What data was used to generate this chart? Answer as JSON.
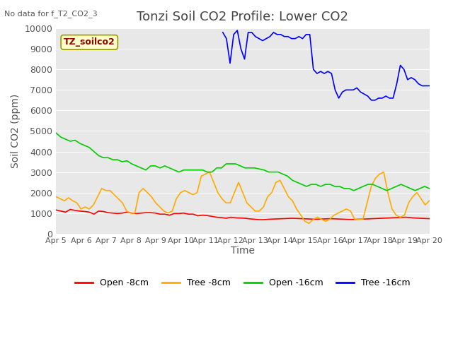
{
  "title": "Tonzi Soil CO2 Profile: Lower CO2",
  "subtitle": "No data for f_T2_CO2_3",
  "xlabel": "Time",
  "ylabel": "Soil CO2 (ppm)",
  "legend_label": "TZ_soilco2",
  "legend_entries": [
    "Open -8cm",
    "Tree -8cm",
    "Open -16cm",
    "Tree -16cm"
  ],
  "legend_colors": [
    "#ff0000",
    "#ffaa00",
    "#00cc00",
    "#0000ff"
  ],
  "bg_color": "#e8e8e8",
  "plot_bg_color": "#e8e8e8",
  "ylim": [
    0,
    10000
  ],
  "yticks": [
    0,
    1000,
    2000,
    3000,
    4000,
    5000,
    6000,
    7000,
    8000,
    9000,
    10000
  ],
  "xtick_labels": [
    "Apr 5",
    "Apr 6",
    "Apr 7",
    "Apr 8",
    "Apr 9",
    "Apr 10",
    "Apr 11",
    "Apr 12",
    "Apr 13",
    "Apr 14",
    "Apr 15",
    "Apr 16",
    "Apr 17",
    "Apr 18",
    "Apr 19",
    "Apr 20"
  ],
  "title_fontsize": 13,
  "axis_fontsize": 10,
  "tick_fontsize": 9,
  "line_width": 1.2,
  "open_8cm": [
    1150,
    1100,
    1050,
    1180,
    1130,
    1100,
    1080,
    1050,
    950,
    1100,
    1080,
    1020,
    1000,
    980,
    1000,
    1050,
    1000,
    980,
    1000,
    1020,
    1020,
    1000,
    950,
    950,
    900,
    980,
    980,
    1000,
    950,
    950,
    870,
    900,
    880,
    840,
    800,
    780,
    750,
    800,
    770,
    760,
    750,
    720,
    700,
    680,
    680,
    700,
    710,
    720,
    730,
    740,
    750,
    740,
    730,
    720,
    710,
    700,
    710,
    720,
    730,
    720,
    710,
    700,
    690,
    690,
    700,
    710,
    720,
    730,
    740,
    750,
    760,
    770,
    780,
    790,
    800,
    780,
    760,
    750,
    740,
    730
  ],
  "tree_8cm": [
    1800,
    1700,
    1600,
    1750,
    1600,
    1500,
    1200,
    1300,
    1200,
    1400,
    1800,
    2200,
    2100,
    2100,
    1900,
    1700,
    1500,
    1100,
    1000,
    1000,
    2000,
    2200,
    2000,
    1800,
    1500,
    1300,
    1100,
    1000,
    1100,
    1700,
    2000,
    2100,
    2000,
    1900,
    2000,
    2800,
    2900,
    3000,
    2500,
    2000,
    1700,
    1500,
    1500,
    2000,
    2500,
    2000,
    1500,
    1300,
    1100,
    1100,
    1300,
    1800,
    2000,
    2500,
    2600,
    2200,
    1800,
    1600,
    1200,
    900,
    600,
    500,
    700,
    800,
    700,
    600,
    700,
    900,
    1000,
    1100,
    1200,
    1100,
    700,
    700,
    700,
    1500,
    2300,
    2700,
    2900,
    3000,
    2000,
    1200,
    900,
    800,
    900,
    1500,
    1800,
    2000,
    1700,
    1400,
    1600
  ],
  "open_16cm": [
    4900,
    4700,
    4600,
    4500,
    4550,
    4400,
    4300,
    4200,
    4000,
    3800,
    3700,
    3700,
    3600,
    3600,
    3500,
    3550,
    3400,
    3300,
    3200,
    3100,
    3300,
    3300,
    3200,
    3300,
    3200,
    3100,
    3000,
    3100,
    3100,
    3100,
    3100,
    3100,
    3000,
    3000,
    3200,
    3200,
    3400,
    3400,
    3400,
    3300,
    3200,
    3200,
    3200,
    3150,
    3100,
    3000,
    3000,
    3000,
    2900,
    2800,
    2600,
    2500,
    2400,
    2300,
    2400,
    2400,
    2300,
    2400,
    2400,
    2300,
    2300,
    2200,
    2200,
    2100,
    2200,
    2300,
    2400,
    2400,
    2300,
    2200,
    2100,
    2200,
    2300,
    2400,
    2300,
    2200,
    2100,
    2200,
    2300,
    2200
  ],
  "tree_16cm": [
    null,
    null,
    null,
    null,
    null,
    null,
    null,
    null,
    null,
    null,
    null,
    null,
    null,
    null,
    null,
    null,
    null,
    null,
    null,
    null,
    null,
    null,
    null,
    null,
    null,
    null,
    null,
    null,
    null,
    null,
    null,
    null,
    null,
    null,
    null,
    null,
    null,
    null,
    null,
    null,
    null,
    null,
    null,
    null,
    null,
    null,
    9800,
    9500,
    8300,
    9700,
    9900,
    9000,
    8500,
    9800,
    9800,
    9600,
    9500,
    9400,
    9500,
    9600,
    9800,
    9700,
    9700,
    9600,
    9600,
    9500,
    9500,
    9600,
    9500,
    9700,
    9700,
    8000,
    7800,
    7900,
    7800,
    7900,
    7800,
    7000,
    6600,
    6900,
    7000,
    7000,
    7000,
    7100,
    6900,
    6800,
    6700,
    6500,
    6500,
    6600,
    6600,
    6700,
    6600,
    6600,
    7300,
    8200,
    8000,
    7500,
    7600,
    7500,
    7300,
    7200,
    7200,
    7200
  ]
}
